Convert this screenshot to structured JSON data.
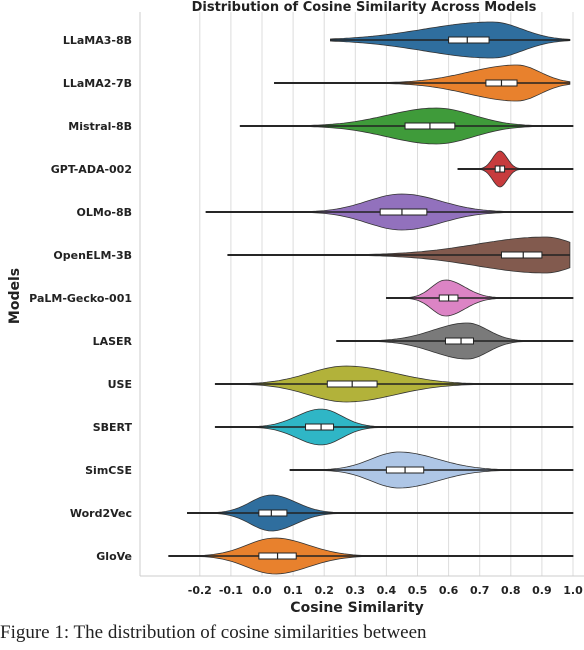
{
  "chart_data": {
    "type": "violin",
    "title": "Distribution of Cosine Similarity Across Models",
    "xlabel": "Cosine Similarity",
    "ylabel": "Models",
    "xticks": [
      "-0.2",
      "-0.1",
      "0.0",
      "0.1",
      "0.2",
      "0.3",
      "0.4",
      "0.5",
      "0.6",
      "0.7",
      "0.8",
      "0.9",
      "1.0"
    ],
    "xlim": [
      -0.38,
      1.02
    ],
    "grid": "vertical",
    "legend": "none",
    "series": [
      {
        "name": "LLaMA3-8B",
        "color": "#2f6e9e",
        "min": 0.22,
        "max": 0.99,
        "q1": 0.6,
        "median": 0.66,
        "q3": 0.73,
        "mode": 0.74
      },
      {
        "name": "LLaMA2-7B",
        "color": "#e8812d",
        "min": 0.04,
        "max": 0.99,
        "q1": 0.72,
        "median": 0.77,
        "q3": 0.82,
        "mode": 0.82
      },
      {
        "name": "Mistral-8B",
        "color": "#3f9b3a",
        "min": -0.07,
        "max": 1.0,
        "q1": 0.46,
        "median": 0.54,
        "q3": 0.62,
        "mode": 0.56
      },
      {
        "name": "GPT-ADA-002",
        "color": "#c73b3d",
        "min": 0.63,
        "max": 1.0,
        "q1": 0.75,
        "median": 0.765,
        "q3": 0.78,
        "mode": 0.765
      },
      {
        "name": "OLMo-8B",
        "color": "#9271bd",
        "min": -0.18,
        "max": 1.0,
        "q1": 0.38,
        "median": 0.45,
        "q3": 0.53,
        "mode": 0.45
      },
      {
        "name": "OpenELM-3B",
        "color": "#825a4e",
        "min": -0.11,
        "max": 0.99,
        "q1": 0.77,
        "median": 0.84,
        "q3": 0.9,
        "mode": 0.91
      },
      {
        "name": "PaLM-Gecko-001",
        "color": "#dc84c5",
        "min": 0.4,
        "max": 1.0,
        "q1": 0.57,
        "median": 0.6,
        "q3": 0.63,
        "mode": 0.59
      },
      {
        "name": "LASER",
        "color": "#7a7a7a",
        "min": 0.24,
        "max": 1.0,
        "q1": 0.59,
        "median": 0.64,
        "q3": 0.68,
        "mode": 0.66
      },
      {
        "name": "USE",
        "color": "#b2b23a",
        "min": -0.15,
        "max": 1.0,
        "q1": 0.21,
        "median": 0.29,
        "q3": 0.37,
        "mode": 0.27
      },
      {
        "name": "SBERT",
        "color": "#2fb6c6",
        "min": -0.15,
        "max": 1.0,
        "q1": 0.14,
        "median": 0.19,
        "q3": 0.23,
        "mode": 0.19
      },
      {
        "name": "SimCSE",
        "color": "#aec6e6",
        "min": 0.09,
        "max": 1.0,
        "q1": 0.4,
        "median": 0.46,
        "q3": 0.52,
        "mode": 0.44
      },
      {
        "name": "Word2Vec",
        "color": "#2f6e9e",
        "min": -0.24,
        "max": 1.0,
        "q1": -0.01,
        "median": 0.03,
        "q3": 0.08,
        "mode": 0.03
      },
      {
        "name": "GloVe",
        "color": "#e8812d",
        "min": -0.3,
        "max": 1.0,
        "q1": -0.01,
        "median": 0.05,
        "q3": 0.11,
        "mode": 0.04
      }
    ]
  },
  "caption": "Figure 1: The distribution of cosine similarities between"
}
